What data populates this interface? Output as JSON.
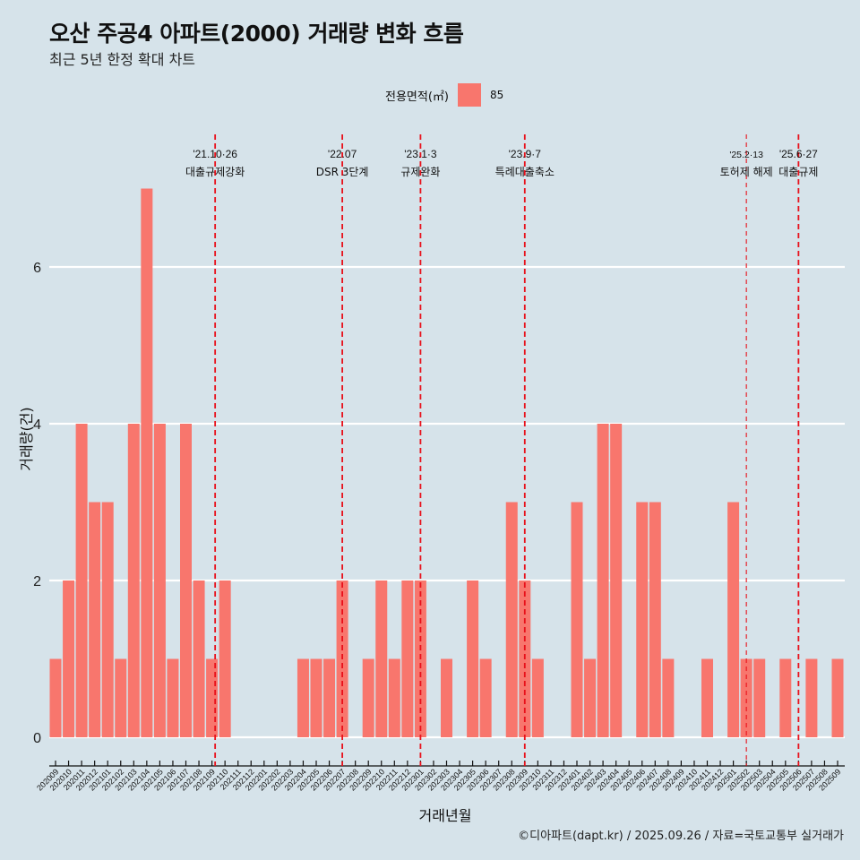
{
  "header": {
    "title": "오산 주공4 아파트(2000) 거래량 변화 흐름",
    "subtitle": "최근 5년 한정 확대 차트"
  },
  "legend": {
    "title": "전용면적(㎡)",
    "items": [
      {
        "label": "85",
        "color": "#f8766d"
      }
    ]
  },
  "caption": "©디아파트(dapt.kr) / 2025.09.26 / 자료=국토교통부 실거래가",
  "colors": {
    "bar": "#f8766d",
    "event_line": "#e8101a",
    "background": "#d6e3ea",
    "grid": "#ffffff"
  },
  "chart_data": {
    "type": "bar",
    "title": "오산 주공4 아파트(2000) 거래량 변화 흐름",
    "subtitle": "최근 5년 한정 확대 차트",
    "xlabel": "거래년월",
    "ylabel": "거래량(건)",
    "ylim": [
      0,
      7
    ],
    "yticks": [
      0,
      2,
      4,
      6
    ],
    "grid": true,
    "legend_position": "top",
    "categories": [
      "202009",
      "202010",
      "202011",
      "202012",
      "202101",
      "202102",
      "202103",
      "202104",
      "202105",
      "202106",
      "202107",
      "202108",
      "202109",
      "202110",
      "202111",
      "202112",
      "202201",
      "202202",
      "202203",
      "202204",
      "202205",
      "202206",
      "202207",
      "202208",
      "202209",
      "202210",
      "202211",
      "202212",
      "202301",
      "202302",
      "202303",
      "202304",
      "202305",
      "202306",
      "202307",
      "202308",
      "202309",
      "202310",
      "202311",
      "202312",
      "202401",
      "202402",
      "202403",
      "202404",
      "202405",
      "202406",
      "202407",
      "202408",
      "202409",
      "202410",
      "202411",
      "202412",
      "202501",
      "202502",
      "202503",
      "202504",
      "202505",
      "202506",
      "202507",
      "202508",
      "202509"
    ],
    "series": [
      {
        "name": "85",
        "values": [
          1,
          2,
          4,
          3,
          3,
          1,
          4,
          7,
          4,
          1,
          4,
          2,
          1,
          2,
          0,
          0,
          0,
          0,
          0,
          1,
          1,
          1,
          2,
          0,
          1,
          2,
          1,
          2,
          2,
          0,
          1,
          0,
          2,
          1,
          0,
          3,
          2,
          1,
          0,
          0,
          3,
          1,
          4,
          4,
          0,
          3,
          3,
          1,
          0,
          0,
          1,
          0,
          3,
          1,
          1,
          0,
          1,
          0,
          1,
          0,
          1
        ]
      }
    ],
    "annotations": [
      {
        "x": "202110",
        "date": "'21.10·26",
        "label": "대출규제강화",
        "style": "major"
      },
      {
        "x": "202207",
        "date": "'22.07",
        "label": "DSR 3단계",
        "style": "major"
      },
      {
        "x": "202301",
        "date": "'23.1·3",
        "label": "규제완화",
        "style": "major"
      },
      {
        "x": "202309",
        "date": "'23.9·7",
        "label": "특례대출축소",
        "style": "major"
      },
      {
        "x": "202502",
        "date": "'25.2·13",
        "label": "토허제 해제",
        "style": "minor"
      },
      {
        "x": "202506",
        "date": "'25.6·27",
        "label": "대출규제",
        "style": "major"
      }
    ]
  }
}
